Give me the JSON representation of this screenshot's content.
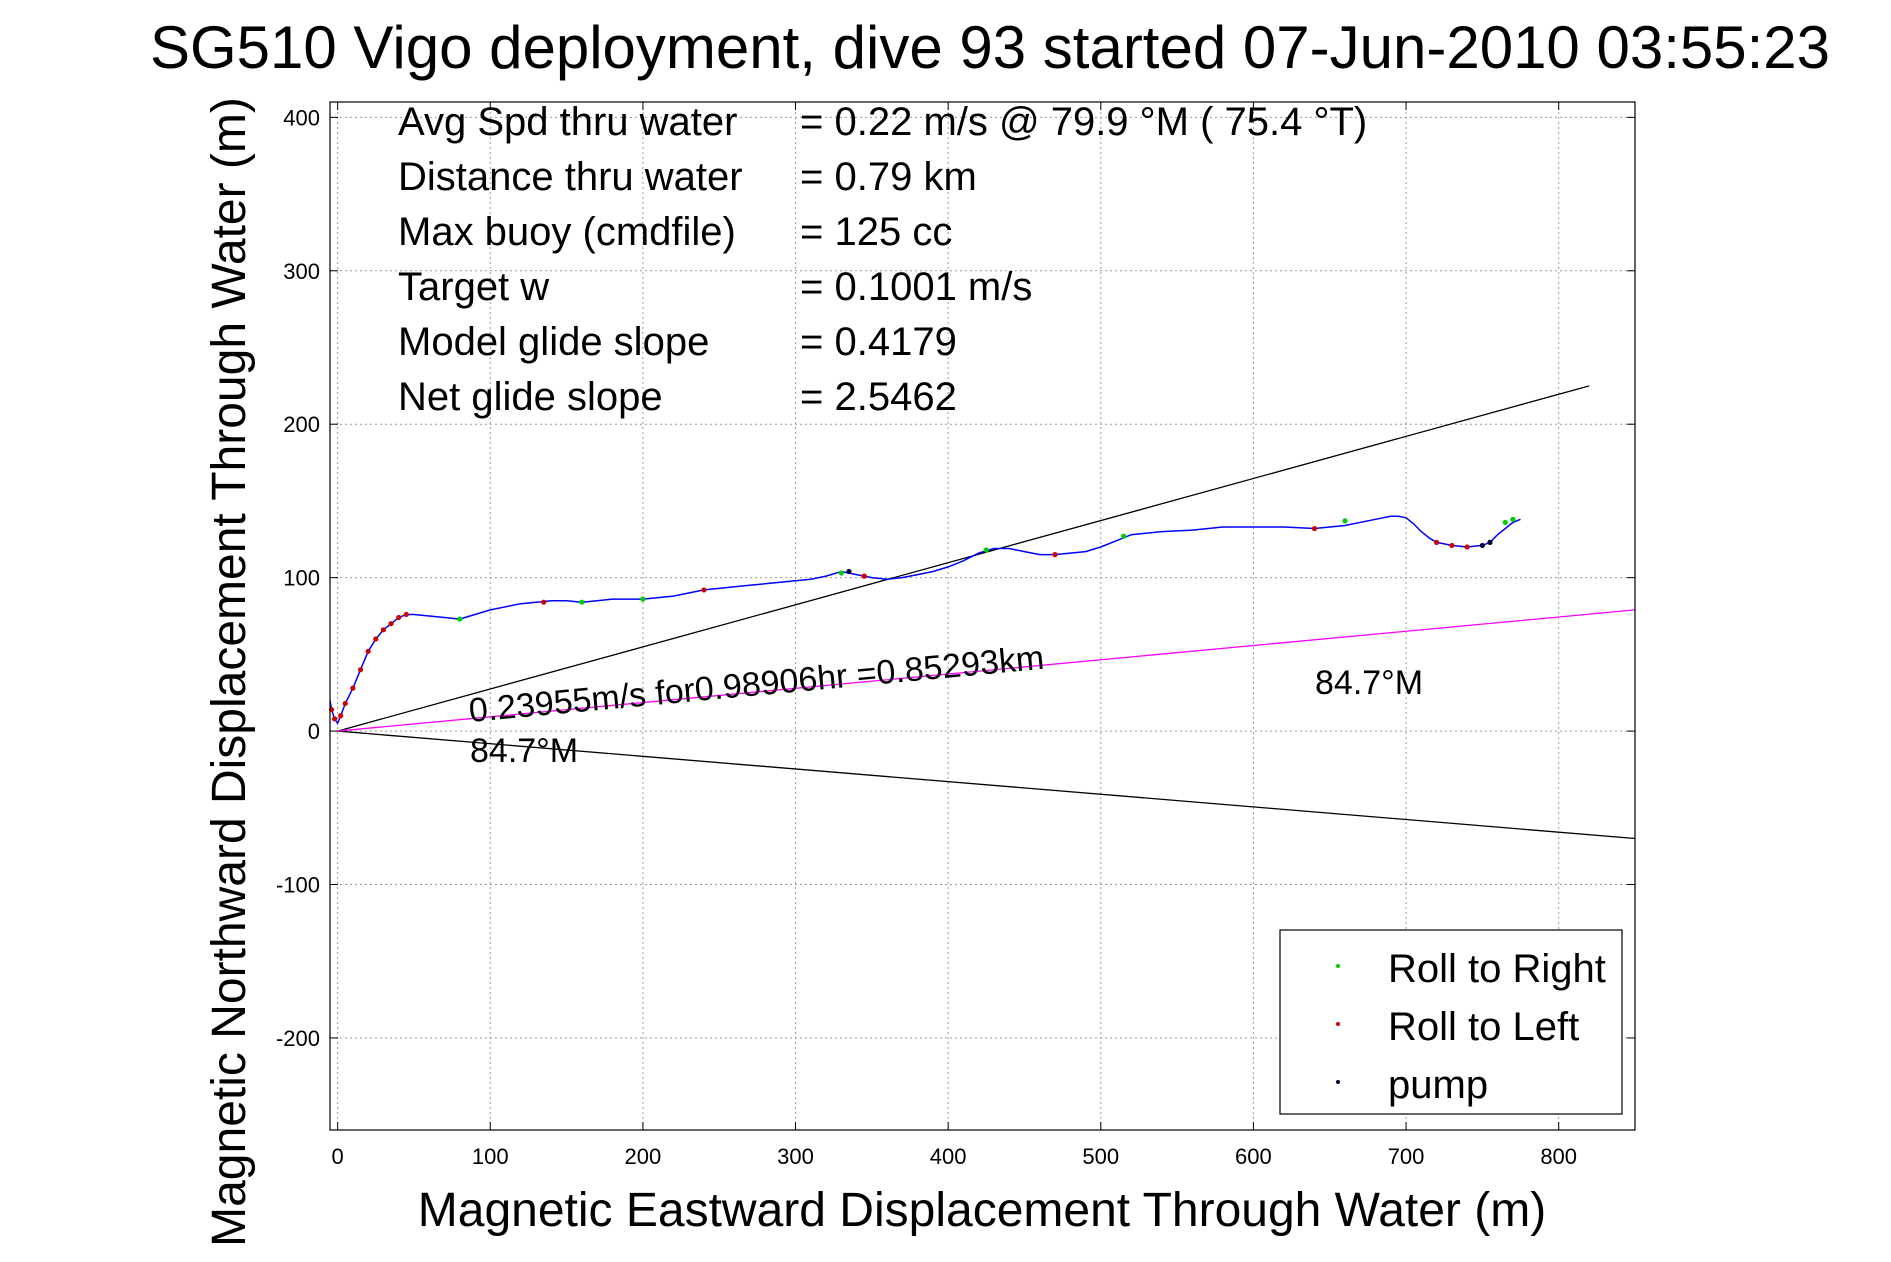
{
  "chart_data": {
    "type": "line",
    "title": "SG510 Vigo deployment, dive 93 started 07-Jun-2010 03:55:23",
    "xlabel": "Magnetic Eastward Displacement Through Water (m)",
    "ylabel": "Magnetic Northward Displacement Through Water (m)",
    "xlim": [
      -5,
      850
    ],
    "ylim": [
      -260,
      410
    ],
    "xticks": [
      "0",
      "100",
      "200",
      "300",
      "400",
      "500",
      "600",
      "700",
      "800"
    ],
    "xtick_values": [
      0,
      100,
      200,
      300,
      400,
      500,
      600,
      700,
      800
    ],
    "yticks": [
      "400",
      "300",
      "200",
      "100",
      "0",
      "-100",
      "-200"
    ],
    "ytick_values": [
      400,
      300,
      200,
      100,
      0,
      -100,
      -200
    ],
    "grid": true,
    "legend_position": "bottom-right",
    "info_lines": [
      {
        "label": "Avg Spd thru water",
        "value": "=  0.22 m/s @  79.9 °M ( 75.4 °T)"
      },
      {
        "label": "Distance thru water",
        "value": "=  0.79 km"
      },
      {
        "label": "Max buoy (cmdfile)",
        "value": "= 125 cc"
      },
      {
        "label": "Target w",
        "value": "= 0.1001 m/s"
      },
      {
        "label": "Model glide slope",
        "value": "= 0.4179"
      },
      {
        "label": "Net glide slope",
        "value": "= 2.5462"
      }
    ],
    "annotations": {
      "current_text": "0.23955m/s for0.98906hr =0.85293km",
      "heading_near": "84.7°M",
      "heading_far": "84.7°M"
    },
    "reference_lines": [
      {
        "color": "#000000",
        "x": [
          0,
          820
        ],
        "y": [
          0,
          225
        ]
      },
      {
        "color": "#000000",
        "x": [
          0,
          850
        ],
        "y": [
          0,
          -70
        ]
      },
      {
        "color": "#ff00ff",
        "x": [
          0,
          850
        ],
        "y": [
          0,
          79
        ]
      }
    ],
    "track": {
      "color": "#0000ff",
      "x": [
        -5,
        -4,
        -2,
        0,
        2,
        5,
        10,
        15,
        20,
        25,
        30,
        35,
        40,
        45,
        50,
        60,
        70,
        80,
        90,
        100,
        110,
        120,
        130,
        140,
        150,
        160,
        170,
        180,
        190,
        200,
        210,
        220,
        230,
        240,
        250,
        260,
        270,
        280,
        290,
        300,
        310,
        320,
        330,
        340,
        350,
        360,
        370,
        380,
        390,
        400,
        410,
        420,
        430,
        440,
        450,
        460,
        470,
        480,
        490,
        500,
        510,
        520,
        540,
        560,
        580,
        600,
        620,
        640,
        660,
        680,
        690,
        695,
        700,
        705,
        710,
        715,
        720,
        730,
        740,
        750,
        755,
        760,
        765,
        770,
        775
      ],
      "y": [
        20,
        14,
        8,
        5,
        10,
        18,
        28,
        40,
        52,
        60,
        66,
        70,
        74,
        76,
        76,
        75,
        74,
        73,
        76,
        79,
        81,
        83,
        84,
        85,
        85,
        84,
        85,
        86,
        86,
        86,
        87,
        88,
        90,
        92,
        93,
        94,
        95,
        96,
        97,
        98,
        99,
        101,
        104,
        102,
        100,
        99,
        100,
        102,
        104,
        107,
        111,
        116,
        119,
        119,
        117,
        115,
        115,
        116,
        117,
        120,
        124,
        128,
        130,
        131,
        133,
        133,
        133,
        132,
        134,
        138,
        140,
        140,
        139,
        135,
        130,
        126,
        123,
        121,
        120,
        121,
        123,
        128,
        132,
        136,
        138
      ]
    },
    "markers": {
      "roll_right": {
        "color": "#00cc00",
        "x": [
          80,
          160,
          200,
          330,
          425,
          515,
          660,
          765,
          770
        ],
        "y": [
          73,
          84,
          86,
          103,
          118,
          127,
          137,
          136,
          138
        ]
      },
      "roll_left": {
        "color": "#cc0000",
        "x": [
          -4,
          -2,
          2,
          5,
          10,
          15,
          20,
          25,
          30,
          35,
          40,
          45,
          135,
          240,
          345,
          470,
          640,
          720,
          730,
          740
        ],
        "y": [
          14,
          8,
          10,
          18,
          28,
          40,
          52,
          60,
          66,
          70,
          74,
          76,
          84,
          92,
          101,
          115,
          132,
          123,
          121,
          120
        ]
      },
      "pump": {
        "color": "#000033",
        "x": [
          335,
          750,
          755
        ],
        "y": [
          104,
          121,
          123
        ]
      }
    },
    "series": [
      {
        "name": "Roll to Right",
        "color": "#00cc00"
      },
      {
        "name": "Roll to Left",
        "color": "#cc0000"
      },
      {
        "name": "pump",
        "color": "#000033"
      }
    ]
  }
}
